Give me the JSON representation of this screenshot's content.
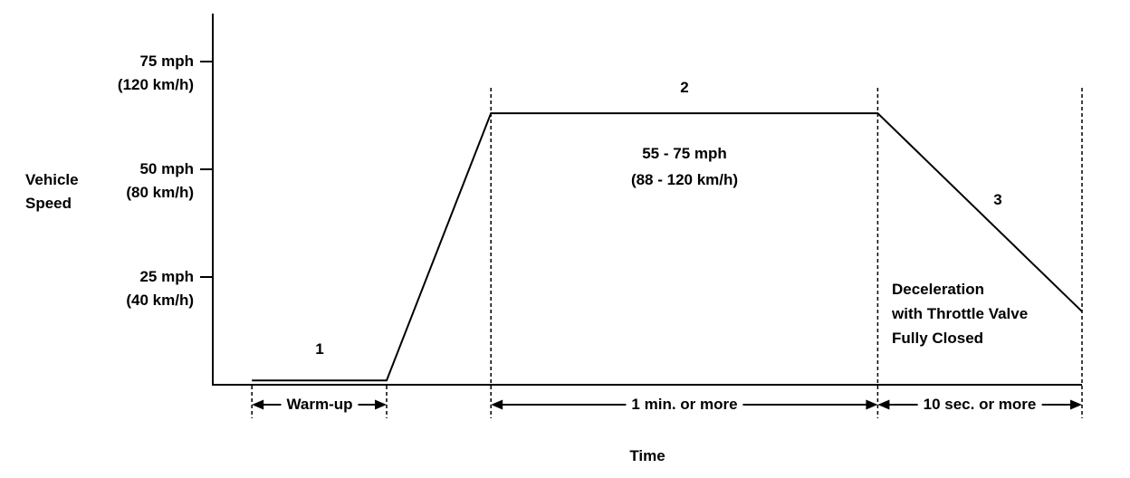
{
  "ylabel": {
    "line1": "Vehicle",
    "line2": "Speed"
  },
  "xlabel": "Time",
  "yticks": [
    {
      "value": 75,
      "mph": "75 mph",
      "kmh": "(120 km/h)"
    },
    {
      "value": 50,
      "mph": "50 mph",
      "kmh": "(80 km/h)"
    },
    {
      "value": 25,
      "mph": "25 mph",
      "kmh": "(40 km/h)"
    }
  ],
  "phases": {
    "p1": {
      "number": "1",
      "span": "Warm-up"
    },
    "p2": {
      "number": "2",
      "annotation1": "55 - 75 mph",
      "annotation2": "(88 - 120 km/h)",
      "span": "1 min. or  more"
    },
    "p3": {
      "number": "3",
      "annotation1": "Deceleration",
      "annotation2": "with Throttle Valve",
      "annotation3": "Fully Closed",
      "span": "10 sec. or  more"
    }
  },
  "chart_data": {
    "type": "line",
    "title": "",
    "xlabel": "Time",
    "ylabel": "Vehicle Speed",
    "ylim_mph": [
      0,
      80
    ],
    "x_relative_range": [
      0,
      100
    ],
    "grid": false,
    "y_ticks_mph": [
      75,
      50,
      25
    ],
    "y_tick_labels": [
      "75 mph (120 km/h)",
      "50 mph (80 km/h)",
      "25 mph (40 km/h)"
    ],
    "series": [
      {
        "name": "vehicle speed profile",
        "points_t_mph": [
          [
            4.5,
            1
          ],
          [
            20,
            1
          ],
          [
            32,
            63
          ],
          [
            76.5,
            63
          ],
          [
            100,
            17
          ]
        ]
      }
    ],
    "boundaries_t": [
      4.5,
      20,
      32,
      76.5,
      100
    ],
    "phases": [
      {
        "number": "1",
        "duration_label": "Warm-up"
      },
      {
        "number": "2",
        "speed_range": "55 - 75 mph (88 - 120 km/h)",
        "duration_label": "1 min. or more"
      },
      {
        "number": "3",
        "annotation": "Deceleration with Throttle Valve Fully Closed",
        "duration_label": "10 sec. or more"
      }
    ]
  }
}
